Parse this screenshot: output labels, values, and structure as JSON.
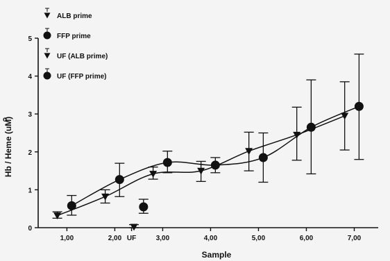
{
  "chart_data": {
    "type": "line",
    "xlabel": "Sample",
    "ylabel": "Hb / Heme (uM)",
    "ylabel_mark": "o",
    "xlim": [
      0.4,
      7.5
    ],
    "ylim": [
      0,
      5
    ],
    "yticks": [
      0,
      1,
      2,
      3,
      4,
      5
    ],
    "xticks": [
      {
        "value": 1.0,
        "label": "1,00"
      },
      {
        "value": 2.0,
        "label": "2,00"
      },
      {
        "value": 2.35,
        "label": "UF"
      },
      {
        "value": 3.0,
        "label": "3,00"
      },
      {
        "value": 4.0,
        "label": "4,00"
      },
      {
        "value": 5.0,
        "label": "5,00"
      },
      {
        "value": 6.0,
        "label": "6,00"
      },
      {
        "value": 7.0,
        "label": "7,00"
      }
    ],
    "legend_position": "top-left",
    "series": [
      {
        "name": "ALB prime",
        "marker": "triangle",
        "x": [
          0.8,
          1.8,
          2.8,
          3.8,
          4.8,
          5.8,
          6.8
        ],
        "y": [
          0.32,
          0.82,
          1.42,
          1.5,
          2.02,
          2.45,
          2.95
        ],
        "err_low": [
          0.25,
          0.65,
          1.28,
          1.22,
          1.5,
          1.78,
          2.05
        ],
        "err_high": [
          0.42,
          1.0,
          1.6,
          1.75,
          2.52,
          3.18,
          3.85
        ]
      },
      {
        "name": "FFP prime",
        "marker": "circle",
        "x": [
          1.1,
          2.1,
          3.1,
          4.1,
          5.1,
          6.1,
          7.1
        ],
        "y": [
          0.58,
          1.27,
          1.72,
          1.65,
          1.85,
          2.65,
          3.2
        ],
        "err_low": [
          0.33,
          0.82,
          1.45,
          1.45,
          1.2,
          1.42,
          1.8
        ],
        "err_high": [
          0.85,
          1.7,
          2.02,
          1.85,
          2.5,
          3.9,
          4.58
        ]
      },
      {
        "name": "UF (ALB prime)",
        "marker": "triangle",
        "x": [
          2.4
        ],
        "y": [
          0.02
        ],
        "err_low": [
          0.0
        ],
        "err_high": [
          0.08
        ]
      },
      {
        "name": "UF (FFP prime)",
        "marker": "circle",
        "x": [
          2.6
        ],
        "y": [
          0.55
        ],
        "err_low": [
          0.38
        ],
        "err_high": [
          0.75
        ]
      }
    ]
  }
}
